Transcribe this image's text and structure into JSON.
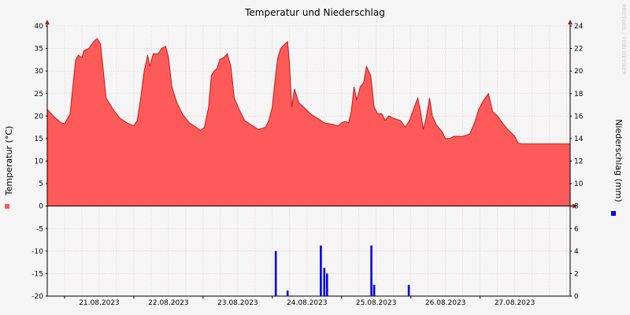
{
  "chart_data": {
    "type": "area",
    "title": "Temperatur und Niederschlag",
    "watermark": "RRDTOOL / TOBI OETIKER",
    "ylabel_left": "Temperatur (°C)",
    "ylabel_right": "Niederschlag (mm)",
    "ylim_left": [
      -20,
      40
    ],
    "ylim_right": [
      0,
      24
    ],
    "yticks_left": [
      40,
      35,
      30,
      25,
      20,
      15,
      10,
      5,
      0,
      -5,
      -10,
      -15,
      -20
    ],
    "yticks_right": [
      24,
      22,
      20,
      18,
      16,
      14,
      12,
      10,
      8,
      6,
      4,
      2,
      0
    ],
    "xlim_days": [
      20.75,
      28.3
    ],
    "x_tick_labels": [
      "21.08.2023",
      "22.08.2023",
      "23.08.2023",
      "24.08.2023",
      "25.08.2023",
      "26.08.2023",
      "27.08.2023"
    ],
    "x_tick_positions_days": [
      21.0,
      22.0,
      23.0,
      24.0,
      25.0,
      26.0,
      27.0
    ],
    "grid": true,
    "colors": {
      "temperature_fill": "#ff5a5a",
      "temperature_line": "#c01818",
      "precipitation": "#0000ee",
      "grid": "#e8b4b4",
      "axis": "#000000",
      "arrow": "#a02020",
      "background": "#f5f5f5"
    },
    "series": [
      {
        "name": "",
        "kind": "area",
        "axis": "left",
        "points": [
          [
            20.75,
            21.5
          ],
          [
            20.85,
            19.8
          ],
          [
            20.95,
            18.5
          ],
          [
            21.0,
            18.3
          ],
          [
            21.08,
            20.5
          ],
          [
            21.12,
            26.5
          ],
          [
            21.16,
            32.5
          ],
          [
            21.2,
            33.5
          ],
          [
            21.25,
            33.0
          ],
          [
            21.28,
            34.5
          ],
          [
            21.35,
            35.0
          ],
          [
            21.42,
            36.5
          ],
          [
            21.47,
            37.2
          ],
          [
            21.52,
            36.0
          ],
          [
            21.56,
            30.0
          ],
          [
            21.6,
            24.0
          ],
          [
            21.7,
            21.5
          ],
          [
            21.8,
            19.5
          ],
          [
            21.9,
            18.5
          ],
          [
            22.0,
            17.8
          ],
          [
            22.05,
            19.0
          ],
          [
            22.1,
            24.0
          ],
          [
            22.15,
            30.0
          ],
          [
            22.2,
            33.5
          ],
          [
            22.23,
            31.0
          ],
          [
            22.28,
            33.8
          ],
          [
            22.35,
            33.8
          ],
          [
            22.4,
            35.0
          ],
          [
            22.46,
            35.5
          ],
          [
            22.5,
            33.0
          ],
          [
            22.55,
            26.5
          ],
          [
            22.62,
            23.0
          ],
          [
            22.7,
            20.5
          ],
          [
            22.8,
            18.5
          ],
          [
            22.9,
            17.5
          ],
          [
            22.96,
            16.8
          ],
          [
            23.02,
            17.5
          ],
          [
            23.08,
            22.0
          ],
          [
            23.12,
            29.0
          ],
          [
            23.16,
            30.0
          ],
          [
            23.2,
            30.5
          ],
          [
            23.24,
            32.5
          ],
          [
            23.3,
            33.0
          ],
          [
            23.35,
            33.8
          ],
          [
            23.4,
            31.0
          ],
          [
            23.45,
            24.0
          ],
          [
            23.52,
            21.5
          ],
          [
            23.6,
            19.0
          ],
          [
            23.7,
            18.0
          ],
          [
            23.8,
            17.0
          ],
          [
            23.9,
            17.5
          ],
          [
            23.95,
            19.0
          ],
          [
            24.0,
            22.0
          ],
          [
            24.05,
            29.5
          ],
          [
            24.08,
            33.0
          ],
          [
            24.12,
            35.0
          ],
          [
            24.18,
            36.0
          ],
          [
            24.22,
            36.5
          ],
          [
            24.25,
            31.0
          ],
          [
            24.28,
            22.0
          ],
          [
            24.32,
            26.0
          ],
          [
            24.35,
            24.5
          ],
          [
            24.38,
            23.0
          ],
          [
            24.45,
            22.0
          ],
          [
            24.55,
            20.5
          ],
          [
            24.65,
            19.5
          ],
          [
            24.75,
            18.5
          ],
          [
            24.85,
            18.2
          ],
          [
            24.95,
            17.8
          ],
          [
            25.0,
            18.5
          ],
          [
            25.05,
            18.8
          ],
          [
            25.1,
            18.5
          ],
          [
            25.14,
            21.0
          ],
          [
            25.18,
            26.5
          ],
          [
            25.22,
            23.5
          ],
          [
            25.27,
            26.5
          ],
          [
            25.32,
            27.5
          ],
          [
            25.36,
            31.0
          ],
          [
            25.42,
            29.0
          ],
          [
            25.47,
            22.0
          ],
          [
            25.52,
            20.5
          ],
          [
            25.58,
            20.5
          ],
          [
            25.63,
            19.0
          ],
          [
            25.68,
            20.0
          ],
          [
            25.75,
            19.5
          ],
          [
            25.85,
            19.0
          ],
          [
            25.92,
            17.5
          ],
          [
            25.98,
            19.0
          ],
          [
            26.05,
            22.0
          ],
          [
            26.1,
            24.0
          ],
          [
            26.14,
            21.0
          ],
          [
            26.18,
            17.0
          ],
          [
            26.22,
            19.5
          ],
          [
            26.27,
            24.0
          ],
          [
            26.31,
            20.0
          ],
          [
            26.37,
            18.0
          ],
          [
            26.45,
            16.5
          ],
          [
            26.5,
            15.0
          ],
          [
            26.56,
            15.0
          ],
          [
            26.62,
            15.5
          ],
          [
            26.75,
            15.5
          ],
          [
            26.85,
            16.0
          ],
          [
            26.92,
            18.5
          ],
          [
            26.98,
            21.5
          ],
          [
            27.05,
            23.5
          ],
          [
            27.12,
            25.0
          ],
          [
            27.18,
            21.0
          ],
          [
            27.25,
            20.0
          ],
          [
            27.32,
            18.5
          ],
          [
            27.4,
            17.0
          ],
          [
            27.5,
            15.5
          ],
          [
            27.55,
            14.0
          ],
          [
            27.6,
            13.8
          ],
          [
            28.3,
            13.8
          ]
        ]
      },
      {
        "name": "",
        "kind": "bar",
        "axis": "right",
        "bar_width_days": 0.03,
        "points": [
          [
            24.05,
            4.0
          ],
          [
            24.22,
            0.5
          ],
          [
            24.7,
            4.5
          ],
          [
            24.75,
            2.5
          ],
          [
            24.79,
            2.0
          ],
          [
            25.43,
            4.5
          ],
          [
            25.47,
            1.0
          ],
          [
            25.97,
            1.0
          ]
        ]
      }
    ]
  }
}
